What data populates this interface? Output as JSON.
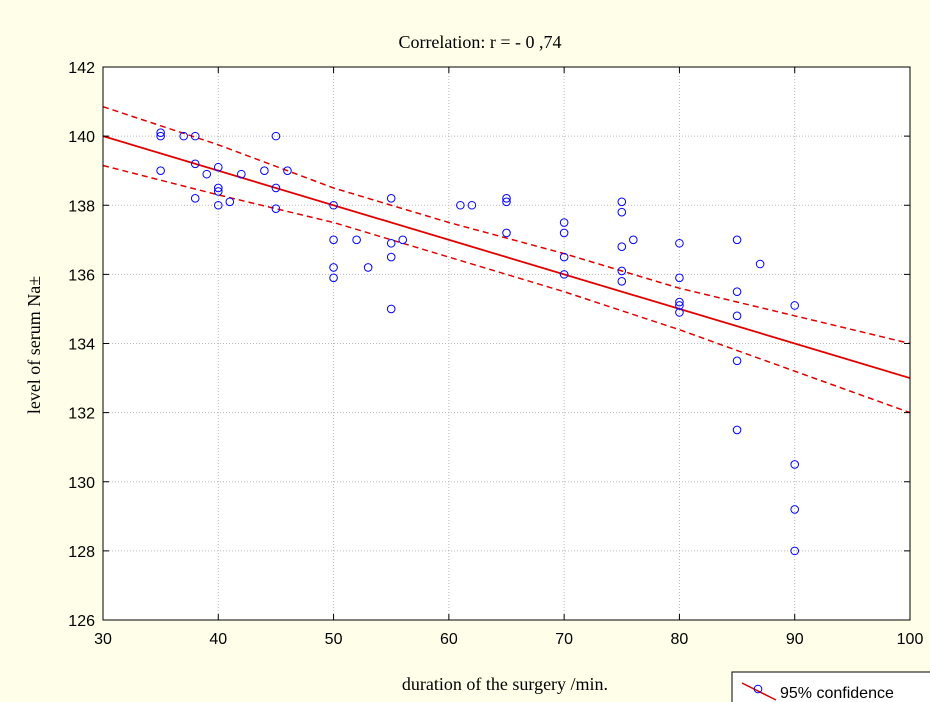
{
  "chart_data": {
    "type": "scatter",
    "title": "Correlation: r = - 0 ,74",
    "xlabel": "duration of the surgery /min.",
    "ylabel": "level of serum Na±",
    "xlim": [
      30,
      100
    ],
    "ylim": [
      126,
      142
    ],
    "x_ticks": [
      "30",
      "40",
      "50",
      "60",
      "70",
      "80",
      "90",
      "100"
    ],
    "y_ticks": [
      "126",
      "128",
      "130",
      "132",
      "134",
      "136",
      "138",
      "140",
      "142"
    ],
    "grid": true,
    "legend": {
      "position": "bottom-right",
      "label": "95% confidence"
    },
    "colors": {
      "points": "#0000ff",
      "fit": "#e00000",
      "background": "#ffffe9",
      "plot_area": "#ffffff"
    },
    "points": [
      [
        35,
        140.1
      ],
      [
        35,
        140.0
      ],
      [
        35,
        139.0
      ],
      [
        37,
        140.0
      ],
      [
        38,
        140.0
      ],
      [
        38,
        139.2
      ],
      [
        38,
        138.2
      ],
      [
        39,
        138.9
      ],
      [
        40,
        139.1
      ],
      [
        40,
        138.5
      ],
      [
        40,
        138.4
      ],
      [
        40,
        138.0
      ],
      [
        41,
        138.1
      ],
      [
        42,
        138.9
      ],
      [
        44,
        139.0
      ],
      [
        45,
        140.0
      ],
      [
        45,
        138.5
      ],
      [
        45,
        137.9
      ],
      [
        46,
        139.0
      ],
      [
        50,
        138.0
      ],
      [
        50,
        137.0
      ],
      [
        50,
        136.2
      ],
      [
        50,
        135.9
      ],
      [
        52,
        137.0
      ],
      [
        53,
        136.2
      ],
      [
        55,
        138.2
      ],
      [
        55,
        136.9
      ],
      [
        55,
        136.5
      ],
      [
        55,
        135.0
      ],
      [
        56,
        137.0
      ],
      [
        61,
        138.0
      ],
      [
        62,
        138.0
      ],
      [
        65,
        138.2
      ],
      [
        65,
        138.1
      ],
      [
        65,
        137.2
      ],
      [
        70,
        137.5
      ],
      [
        70,
        137.2
      ],
      [
        70,
        136.5
      ],
      [
        70,
        136.0
      ],
      [
        75,
        138.1
      ],
      [
        75,
        137.8
      ],
      [
        75,
        136.8
      ],
      [
        75,
        136.1
      ],
      [
        75,
        135.8
      ],
      [
        76,
        137.0
      ],
      [
        80,
        136.9
      ],
      [
        80,
        135.9
      ],
      [
        80,
        135.2
      ],
      [
        80,
        135.1
      ],
      [
        80,
        134.9
      ],
      [
        85,
        137.0
      ],
      [
        85,
        135.5
      ],
      [
        85,
        134.8
      ],
      [
        85,
        133.5
      ],
      [
        85,
        131.5
      ],
      [
        87,
        136.3
      ],
      [
        90,
        135.1
      ],
      [
        90,
        130.5
      ],
      [
        90,
        129.2
      ],
      [
        90,
        128.0
      ]
    ],
    "fit_line": [
      [
        30,
        140.0
      ],
      [
        100,
        133.0
      ]
    ],
    "ci_upper": [
      [
        30,
        140.85
      ],
      [
        40,
        139.75
      ],
      [
        50,
        138.5
      ],
      [
        60,
        137.5
      ],
      [
        70,
        136.6
      ],
      [
        80,
        135.6
      ],
      [
        90,
        134.8
      ],
      [
        100,
        134.0
      ]
    ],
    "ci_lower": [
      [
        30,
        139.15
      ],
      [
        40,
        138.3
      ],
      [
        50,
        137.5
      ],
      [
        60,
        136.5
      ],
      [
        70,
        135.5
      ],
      [
        80,
        134.4
      ],
      [
        90,
        133.2
      ],
      [
        100,
        132.0
      ]
    ]
  }
}
